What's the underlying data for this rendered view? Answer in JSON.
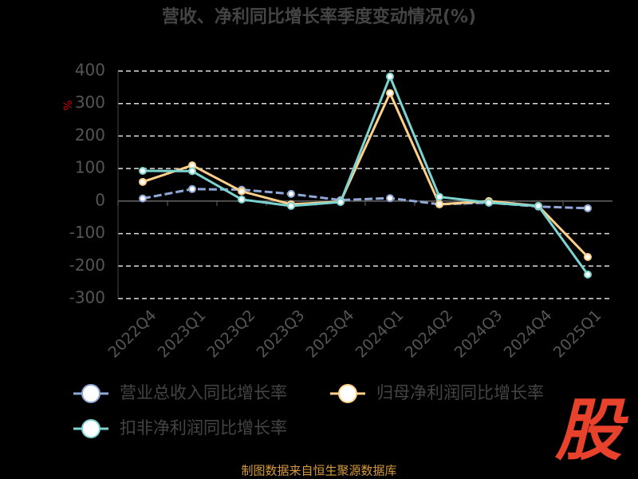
{
  "chart_data": {
    "type": "line",
    "title": "营收、净利同比增长率季度变动情况(%)",
    "y_axis_label": "%",
    "categories": [
      "2022Q4",
      "2023Q1",
      "2023Q2",
      "2023Q3",
      "2023Q4",
      "2024Q1",
      "2024Q2",
      "2024Q3",
      "2024Q4",
      "2025Q1"
    ],
    "series": [
      {
        "name": "营业总收入同比增长率",
        "color": "#8fa8d8",
        "values": [
          8,
          37,
          35,
          22,
          3,
          9,
          -10,
          -5,
          -17,
          -22
        ]
      },
      {
        "name": "归母净利润同比增长率",
        "color": "#ffd08a",
        "values": [
          59,
          110,
          30,
          -10,
          -2,
          332,
          -10,
          0,
          -15,
          -172
        ]
      },
      {
        "name": "扣非净利润同比增长率",
        "color": "#7dd3d0",
        "values": [
          93,
          92,
          5,
          -15,
          -3,
          383,
          13,
          -5,
          -15,
          -226
        ]
      }
    ],
    "ylim": [
      -300,
      400
    ],
    "yticks": [
      -300,
      -200,
      -100,
      0,
      100,
      200,
      300,
      400
    ],
    "grid": true,
    "legend": "bottom",
    "source": "制图数据来自恒生聚源数据库",
    "watermark": "股"
  }
}
